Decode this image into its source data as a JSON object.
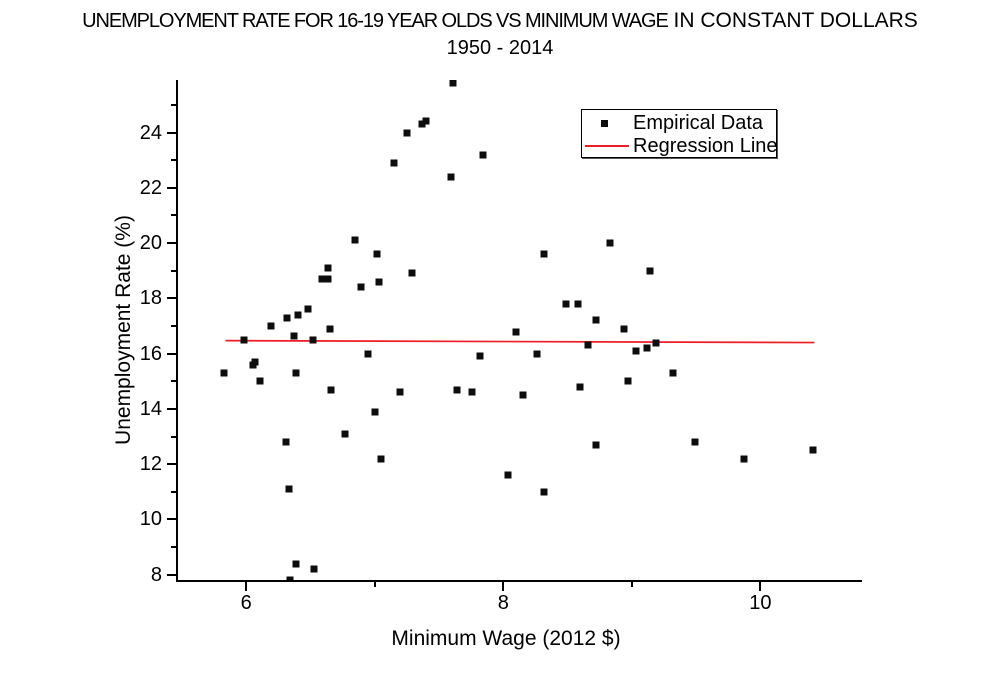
{
  "title": {
    "main_condensed": "UNEMPLOYMENT RATE FOR 16-19 YEAR OLDS VS MINIMUM WAGE",
    "main_regular": " IN CONSTANT DOLLARS",
    "subtitle": "1950 - 2014"
  },
  "legend": {
    "items": [
      {
        "label": "Empirical Data",
        "swatch": "black-square-marker"
      },
      {
        "label": "Regression Line",
        "swatch": "red-line"
      }
    ]
  },
  "colors": {
    "marker": "#0d0d0d",
    "regression_line": "#ee1c25",
    "axis": "#000000",
    "background": "#ffffff"
  },
  "chart_data": {
    "type": "scatter",
    "title": "UNEMPLOYMENT RATE FOR 16-19 YEAR OLDS VS MINIMUM WAGE IN CONSTANT DOLLARS",
    "subtitle": "1950 - 2014",
    "xlabel": "Minimum Wage (2012 $)",
    "ylabel": "Unemployment Rate (%)",
    "xlim": [
      5.47,
      10.79
    ],
    "ylim": [
      7.81,
      25.9
    ],
    "grid": false,
    "legend_position": "top-right-inside",
    "x_ticks": {
      "major": [
        6,
        8,
        10
      ],
      "minor": [
        7,
        9
      ]
    },
    "y_ticks": {
      "major": [
        8,
        10,
        12,
        14,
        16,
        18,
        20,
        22,
        24
      ],
      "minor": [
        9,
        11,
        13,
        15,
        17,
        19,
        21,
        23,
        25
      ]
    },
    "series": [
      {
        "name": "Empirical Data",
        "type": "scatter",
        "marker": "square",
        "color": "#0d0d0d",
        "points": [
          [
            5.83,
            15.3
          ],
          [
            5.98,
            16.5
          ],
          [
            6.05,
            15.6
          ],
          [
            6.07,
            15.7
          ],
          [
            6.11,
            15.0
          ],
          [
            6.19,
            17.0
          ],
          [
            6.31,
            12.8
          ],
          [
            6.32,
            17.3
          ],
          [
            6.33,
            11.1
          ],
          [
            6.34,
            7.8
          ],
          [
            6.37,
            16.65
          ],
          [
            6.39,
            15.3
          ],
          [
            6.39,
            8.4
          ],
          [
            6.4,
            17.4
          ],
          [
            6.48,
            17.6
          ],
          [
            6.52,
            16.5
          ],
          [
            6.53,
            8.2
          ],
          [
            6.59,
            18.7
          ],
          [
            6.64,
            18.7
          ],
          [
            6.64,
            19.1
          ],
          [
            6.65,
            16.9
          ],
          [
            6.66,
            14.7
          ],
          [
            6.77,
            13.1
          ],
          [
            6.85,
            20.1
          ],
          [
            6.89,
            18.4
          ],
          [
            6.95,
            16.0
          ],
          [
            7.0,
            13.9
          ],
          [
            7.02,
            19.6
          ],
          [
            7.03,
            18.6
          ],
          [
            7.05,
            12.2
          ],
          [
            7.15,
            22.9
          ],
          [
            7.2,
            14.6
          ],
          [
            7.25,
            24.0
          ],
          [
            7.29,
            18.9
          ],
          [
            7.37,
            24.3
          ],
          [
            7.4,
            24.4
          ],
          [
            7.59,
            22.4
          ],
          [
            7.61,
            25.8
          ],
          [
            7.64,
            14.7
          ],
          [
            7.76,
            14.6
          ],
          [
            7.82,
            15.9
          ],
          [
            7.84,
            23.2
          ],
          [
            8.04,
            11.6
          ],
          [
            8.1,
            16.8
          ],
          [
            8.15,
            14.5
          ],
          [
            8.26,
            16.0
          ],
          [
            8.32,
            11.0
          ],
          [
            8.32,
            19.6
          ],
          [
            8.49,
            17.8
          ],
          [
            8.58,
            17.8
          ],
          [
            8.6,
            14.8
          ],
          [
            8.66,
            16.3
          ],
          [
            8.72,
            12.7
          ],
          [
            8.72,
            17.2
          ],
          [
            8.83,
            20.0
          ],
          [
            8.94,
            16.9
          ],
          [
            8.97,
            15.0
          ],
          [
            9.03,
            16.1
          ],
          [
            9.12,
            16.2
          ],
          [
            9.14,
            19.0
          ],
          [
            9.19,
            16.4
          ],
          [
            9.32,
            15.3
          ],
          [
            9.49,
            12.8
          ],
          [
            9.87,
            12.2
          ],
          [
            10.41,
            12.5
          ]
        ]
      },
      {
        "name": "Regression Line",
        "type": "line",
        "color": "#ee1c25",
        "points": [
          [
            5.84,
            16.47
          ],
          [
            10.42,
            16.4
          ]
        ]
      }
    ]
  }
}
